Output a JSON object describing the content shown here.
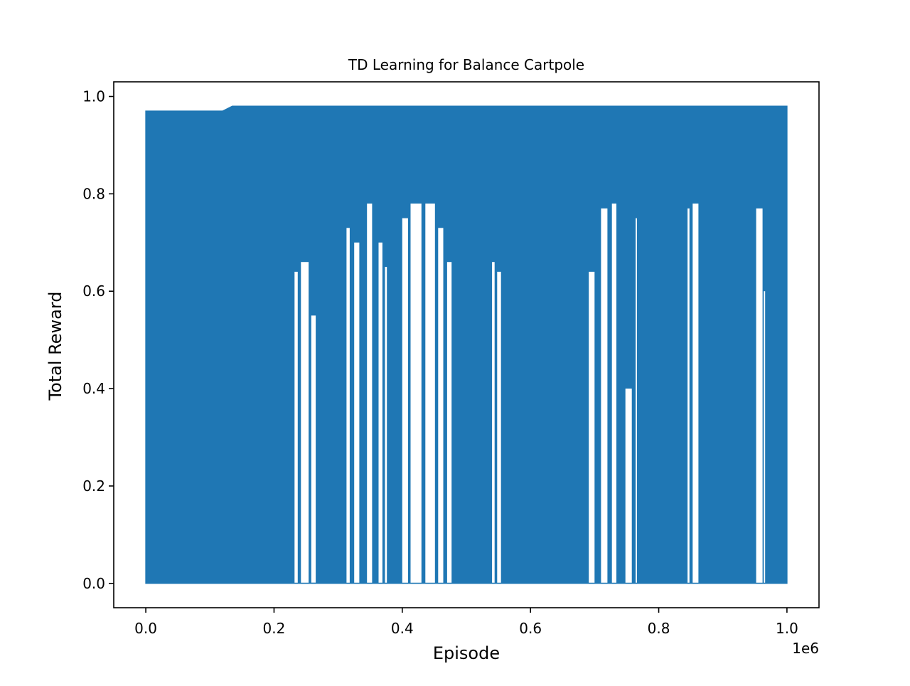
{
  "chart_data": {
    "type": "line",
    "title": "TD Learning for Balance Cartpole",
    "xlabel": "Episode",
    "ylabel": "Total Reward",
    "x_offset_text": "1e6",
    "xlim": [
      -0.05,
      1.05
    ],
    "ylim": [
      -0.05,
      1.03
    ],
    "x_ticks": [
      0.0,
      0.2,
      0.4,
      0.6,
      0.8,
      1.0
    ],
    "x_tick_labels": [
      "0.0",
      "0.2",
      "0.4",
      "0.6",
      "0.8",
      "1.0"
    ],
    "y_ticks": [
      0.0,
      0.2,
      0.4,
      0.6,
      0.8,
      1.0
    ],
    "y_tick_labels": [
      "0.0",
      "0.2",
      "0.4",
      "0.6",
      "0.8",
      "1.0"
    ],
    "grid": false,
    "legend": "none",
    "series_color": "#1f77b4",
    "x_range": [
      0.0,
      1.0
    ],
    "y_min": 0.0,
    "y_max": 0.98,
    "series": [
      {
        "x": [
          0.0,
          0.012,
          0.02,
          0.03,
          0.05,
          0.06,
          0.08,
          0.1,
          0.12,
          0.135,
          0.15,
          0.2,
          0.23,
          0.235,
          0.24,
          0.25,
          0.26,
          0.27,
          0.3,
          0.31,
          0.32,
          0.33,
          0.34,
          0.35,
          0.36,
          0.37,
          0.38,
          0.4,
          0.41,
          0.42,
          0.43,
          0.44,
          0.45,
          0.46,
          0.47,
          0.48,
          0.5,
          0.54,
          0.545,
          0.55,
          0.555,
          0.56,
          0.6,
          0.69,
          0.7,
          0.71,
          0.72,
          0.73,
          0.74,
          0.75,
          0.76,
          0.77,
          0.8,
          0.84,
          0.85,
          0.86,
          0.9,
          0.95,
          0.96,
          0.97,
          1.0
        ],
        "y_upper": [
          0.97,
          0.97,
          0.97,
          0.97,
          0.97,
          0.97,
          0.97,
          0.97,
          0.97,
          0.98,
          0.98,
          0.98,
          0.98,
          0.98,
          0.98,
          0.98,
          0.98,
          0.98,
          0.98,
          0.98,
          0.98,
          0.98,
          0.98,
          0.98,
          0.98,
          0.98,
          0.98,
          0.98,
          0.98,
          0.98,
          0.98,
          0.98,
          0.98,
          0.98,
          0.98,
          0.98,
          0.98,
          0.98,
          0.98,
          0.98,
          0.98,
          0.98,
          0.98,
          0.98,
          0.98,
          0.98,
          0.98,
          0.98,
          0.98,
          0.98,
          0.98,
          0.98,
          0.98,
          0.98,
          0.98,
          0.98,
          0.98,
          0.98,
          0.98,
          0.98,
          0.98
        ],
        "y_lower_floor": 0.0
      }
    ],
    "gaps": [
      {
        "x_start": 0.232,
        "x_end": 0.237,
        "y_top": 0.64
      },
      {
        "x_start": 0.242,
        "x_end": 0.254,
        "y_top": 0.66
      },
      {
        "x_start": 0.258,
        "x_end": 0.265,
        "y_top": 0.55
      },
      {
        "x_start": 0.313,
        "x_end": 0.318,
        "y_top": 0.73
      },
      {
        "x_start": 0.325,
        "x_end": 0.333,
        "y_top": 0.7
      },
      {
        "x_start": 0.345,
        "x_end": 0.353,
        "y_top": 0.78
      },
      {
        "x_start": 0.363,
        "x_end": 0.369,
        "y_top": 0.7
      },
      {
        "x_start": 0.373,
        "x_end": 0.376,
        "y_top": 0.65
      },
      {
        "x_start": 0.4,
        "x_end": 0.409,
        "y_top": 0.75
      },
      {
        "x_start": 0.413,
        "x_end": 0.43,
        "y_top": 0.78
      },
      {
        "x_start": 0.436,
        "x_end": 0.451,
        "y_top": 0.78
      },
      {
        "x_start": 0.456,
        "x_end": 0.464,
        "y_top": 0.73
      },
      {
        "x_start": 0.47,
        "x_end": 0.477,
        "y_top": 0.66
      },
      {
        "x_start": 0.54,
        "x_end": 0.544,
        "y_top": 0.66
      },
      {
        "x_start": 0.548,
        "x_end": 0.554,
        "y_top": 0.64
      },
      {
        "x_start": 0.691,
        "x_end": 0.7,
        "y_top": 0.64
      },
      {
        "x_start": 0.71,
        "x_end": 0.72,
        "y_top": 0.77
      },
      {
        "x_start": 0.727,
        "x_end": 0.734,
        "y_top": 0.78
      },
      {
        "x_start": 0.748,
        "x_end": 0.758,
        "y_top": 0.4
      },
      {
        "x_start": 0.764,
        "x_end": 0.766,
        "y_top": 0.75
      },
      {
        "x_start": 0.845,
        "x_end": 0.848,
        "y_top": 0.77
      },
      {
        "x_start": 0.853,
        "x_end": 0.862,
        "y_top": 0.78
      },
      {
        "x_start": 0.952,
        "x_end": 0.962,
        "y_top": 0.77
      },
      {
        "x_start": 0.964,
        "x_end": 0.966,
        "y_top": 0.6
      }
    ]
  }
}
